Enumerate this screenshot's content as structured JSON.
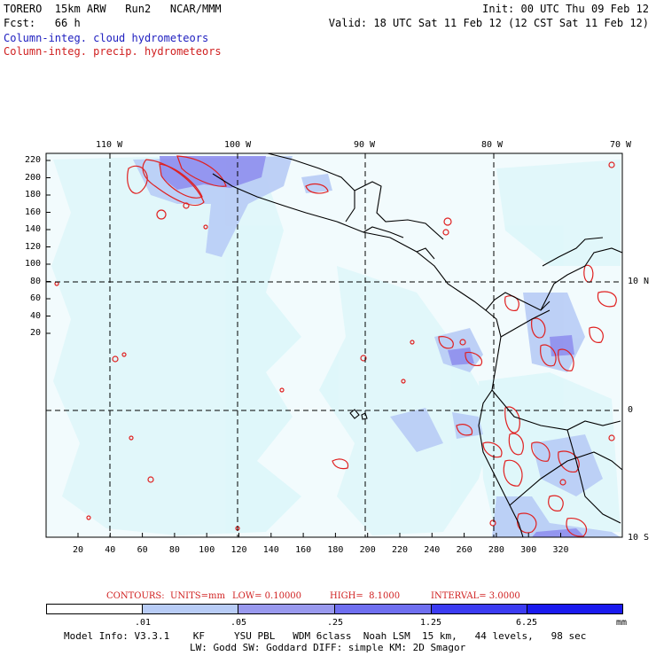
{
  "header": {
    "left1": "TORERO  15km ARW   Run2   NCAR/MMM",
    "left2": "Fcst:   66 h",
    "right1": "Init: 00 UTC Thu 09 Feb 12",
    "right2": "Valid: 18 UTC Sat 11 Feb 12 (12 CST Sat 11 Feb 12)",
    "legend_cloud": "Column-integ. cloud hydrometeors",
    "legend_precip": "Column-integ. precip. hydrometeors"
  },
  "map": {
    "top_lon_labels": [
      "110 W",
      "100 W",
      "90 W",
      "80 W",
      "70 W"
    ],
    "right_lat_labels": [
      "10 N",
      "0",
      "10 S"
    ],
    "y_ticks": [
      "220",
      "200",
      "180",
      "160",
      "140",
      "120",
      "100",
      "80",
      "60",
      "40",
      "20"
    ],
    "x_ticks": [
      "20",
      "40",
      "60",
      "80",
      "100",
      "120",
      "140",
      "160",
      "180",
      "200",
      "220",
      "240",
      "260",
      "280",
      "300",
      "320"
    ]
  },
  "contours": {
    "label": "CONTOURS:",
    "units": "UNITS=mm",
    "low": "LOW= 0.10000",
    "high": "HIGH=  8.1000",
    "interval": "INTERVAL= 3.0000"
  },
  "colorbar": {
    "ticks": [
      ".01",
      ".05",
      ".25",
      "1.25",
      "6.25"
    ],
    "units": "mm",
    "colors": [
      "#ffffff",
      "#dff7fa",
      "#b8ccf6",
      "#9999ee",
      "#6f6ff0",
      "#3c3cf2",
      "#1a1aee"
    ]
  },
  "footer": {
    "line1": "Model Info: V3.3.1    KF     YSU PBL   WDM 6class  Noah LSM  15 km,   44 levels,   98 sec",
    "line2": "LW: Godd SW: Goddard DIFF: simple KM: 2D Smagor"
  }
}
